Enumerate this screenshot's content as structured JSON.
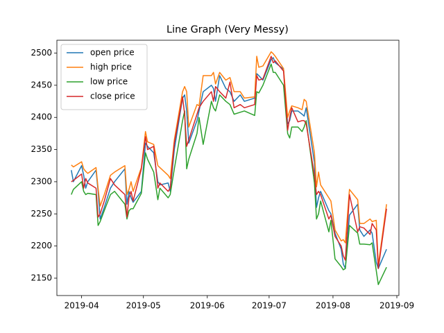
{
  "chart_data": {
    "type": "line",
    "title": "Line Graph (Very Messy)",
    "x": [
      "2019-03-27",
      "2019-03-28",
      "2019-04-01",
      "2019-04-02",
      "2019-04-03",
      "2019-04-04",
      "2019-04-08",
      "2019-04-09",
      "2019-04-10",
      "2019-04-12",
      "2019-04-15",
      "2019-04-17",
      "2019-04-22",
      "2019-04-23",
      "2019-04-24",
      "2019-04-25",
      "2019-04-26",
      "2019-04-30",
      "2019-05-02",
      "2019-05-03",
      "2019-05-06",
      "2019-05-08",
      "2019-05-09",
      "2019-05-13",
      "2019-05-14",
      "2019-05-16",
      "2019-05-20",
      "2019-05-21",
      "2019-05-22",
      "2019-05-23",
      "2019-05-27",
      "2019-05-28",
      "2019-05-30",
      "2019-06-03",
      "2019-06-04",
      "2019-06-05",
      "2019-06-07",
      "2019-06-10",
      "2019-06-12",
      "2019-06-14",
      "2019-06-17",
      "2019-06-19",
      "2019-06-24",
      "2019-06-25",
      "2019-06-26",
      "2019-06-28",
      "2019-07-02",
      "2019-07-03",
      "2019-07-04",
      "2019-07-08",
      "2019-07-10",
      "2019-07-11",
      "2019-07-12",
      "2019-07-15",
      "2019-07-17",
      "2019-07-18",
      "2019-07-19",
      "2019-07-23",
      "2019-07-24",
      "2019-07-25",
      "2019-07-26",
      "2019-07-30",
      "2019-07-31",
      "2019-08-02",
      "2019-08-05",
      "2019-08-06",
      "2019-08-07",
      "2019-08-09",
      "2019-08-13",
      "2019-08-14",
      "2019-08-16",
      "2019-08-19",
      "2019-08-20",
      "2019-08-22",
      "2019-08-23",
      "2019-08-27"
    ],
    "series": [
      {
        "name": "open price",
        "color": "#1f77b4",
        "values": [
          2318,
          2300,
          2325,
          2310,
          2290,
          2300,
          2318,
          2285,
          2242,
          2260,
          2290,
          2300,
          2320,
          2265,
          2285,
          2275,
          2268,
          2285,
          2360,
          2355,
          2345,
          2300,
          2295,
          2298,
          2285,
          2350,
          2430,
          2435,
          2410,
          2360,
          2395,
          2410,
          2440,
          2450,
          2445,
          2425,
          2465,
          2445,
          2440,
          2425,
          2435,
          2425,
          2430,
          2468,
          2465,
          2458,
          2490,
          2493,
          2485,
          2475,
          2390,
          2395,
          2410,
          2410,
          2405,
          2402,
          2415,
          2330,
          2260,
          2275,
          2285,
          2255,
          2250,
          2220,
          2195,
          2172,
          2165,
          2248,
          2265,
          2225,
          2215,
          2225,
          2220,
          2175,
          2165,
          2195
        ]
      },
      {
        "name": "high price",
        "color": "#ff7f0e",
        "values": [
          2326,
          2323,
          2331,
          2320,
          2316,
          2313,
          2322,
          2290,
          2262,
          2280,
          2310,
          2315,
          2325,
          2280,
          2288,
          2300,
          2285,
          2322,
          2378,
          2362,
          2358,
          2325,
          2322,
          2310,
          2305,
          2365,
          2440,
          2448,
          2440,
          2385,
          2420,
          2418,
          2465,
          2465,
          2470,
          2452,
          2470,
          2458,
          2462,
          2440,
          2440,
          2430,
          2432,
          2495,
          2478,
          2480,
          2502,
          2499,
          2495,
          2476,
          2400,
          2410,
          2418,
          2415,
          2412,
          2428,
          2425,
          2345,
          2292,
          2315,
          2295,
          2275,
          2270,
          2225,
          2208,
          2210,
          2205,
          2288,
          2272,
          2235,
          2235,
          2242,
          2238,
          2240,
          2170,
          2265
        ]
      },
      {
        "name": "low price",
        "color": "#2ca02c",
        "values": [
          2280,
          2288,
          2300,
          2285,
          2280,
          2282,
          2280,
          2232,
          2238,
          2255,
          2280,
          2285,
          2265,
          2242,
          2255,
          2258,
          2258,
          2282,
          2345,
          2335,
          2315,
          2272,
          2290,
          2275,
          2280,
          2320,
          2395,
          2410,
          2320,
          2335,
          2375,
          2400,
          2358,
          2425,
          2415,
          2410,
          2435,
          2425,
          2420,
          2405,
          2408,
          2410,
          2403,
          2440,
          2438,
          2450,
          2483,
          2470,
          2470,
          2450,
          2375,
          2368,
          2385,
          2385,
          2378,
          2385,
          2395,
          2298,
          2242,
          2250,
          2270,
          2222,
          2240,
          2180,
          2168,
          2163,
          2165,
          2232,
          2220,
          2203,
          2203,
          2202,
          2205,
          2162,
          2140,
          2167
        ]
      },
      {
        "name": "close price",
        "color": "#d62728",
        "values": [
          2300,
          2302,
          2312,
          2290,
          2305,
          2298,
          2290,
          2245,
          2250,
          2270,
          2305,
          2295,
          2280,
          2245,
          2275,
          2285,
          2270,
          2320,
          2370,
          2350,
          2355,
          2290,
          2298,
          2285,
          2290,
          2360,
          2432,
          2405,
          2355,
          2365,
          2405,
          2415,
          2425,
          2440,
          2425,
          2448,
          2440,
          2430,
          2455,
          2415,
          2420,
          2415,
          2420,
          2465,
          2458,
          2460,
          2495,
          2485,
          2488,
          2472,
          2380,
          2400,
          2415,
          2393,
          2395,
          2395,
          2390,
          2310,
          2280,
          2285,
          2280,
          2242,
          2248,
          2215,
          2200,
          2185,
          2178,
          2280,
          2222,
          2230,
          2228,
          2218,
          2235,
          2225,
          2165,
          2258
        ]
      }
    ],
    "xlim": [
      "2019-03-20",
      "2019-09-02"
    ],
    "xticks": [
      {
        "value": "2019-04-01",
        "label": "2019-04"
      },
      {
        "value": "2019-05-01",
        "label": "2019-05"
      },
      {
        "value": "2019-06-01",
        "label": "2019-06"
      },
      {
        "value": "2019-07-01",
        "label": "2019-07"
      },
      {
        "value": "2019-08-01",
        "label": "2019-08"
      },
      {
        "value": "2019-09-01",
        "label": "2019-09"
      }
    ],
    "ylim": [
      2123,
      2520
    ],
    "yticks": [
      2150,
      2200,
      2250,
      2300,
      2350,
      2400,
      2450,
      2500
    ],
    "grid": false,
    "legend": "upper left"
  }
}
